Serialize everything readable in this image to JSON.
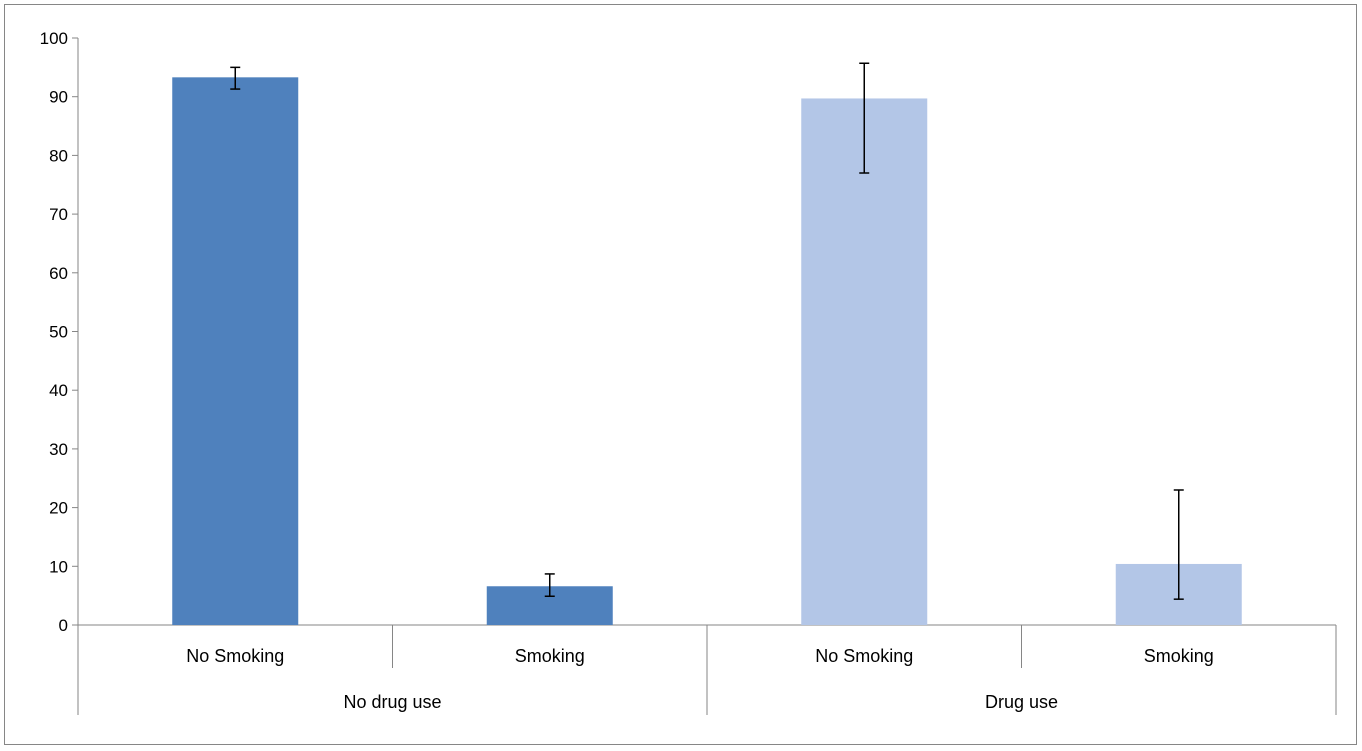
{
  "chart_data": {
    "type": "bar",
    "title": "",
    "xlabel": "",
    "ylabel": "",
    "ylim": [
      0,
      100
    ],
    "yticks": [
      0,
      10,
      20,
      30,
      40,
      50,
      60,
      70,
      80,
      90,
      100
    ],
    "grid": false,
    "legend": "none",
    "groups": [
      {
        "label": "No drug use",
        "color": "#4f81bd",
        "bars": [
          {
            "label": "No Smoking",
            "value": 93.3,
            "err_low": 91.3,
            "err_high": 95.0
          },
          {
            "label": "Smoking",
            "value": 6.6,
            "err_low": 4.9,
            "err_high": 8.7
          }
        ]
      },
      {
        "label": "Drug use",
        "color": "#b3c6e7",
        "bars": [
          {
            "label": "No Smoking",
            "value": 89.7,
            "err_low": 77.0,
            "err_high": 95.7
          },
          {
            "label": "Smoking",
            "value": 10.4,
            "err_low": 4.4,
            "err_high": 23.0
          }
        ]
      }
    ]
  }
}
